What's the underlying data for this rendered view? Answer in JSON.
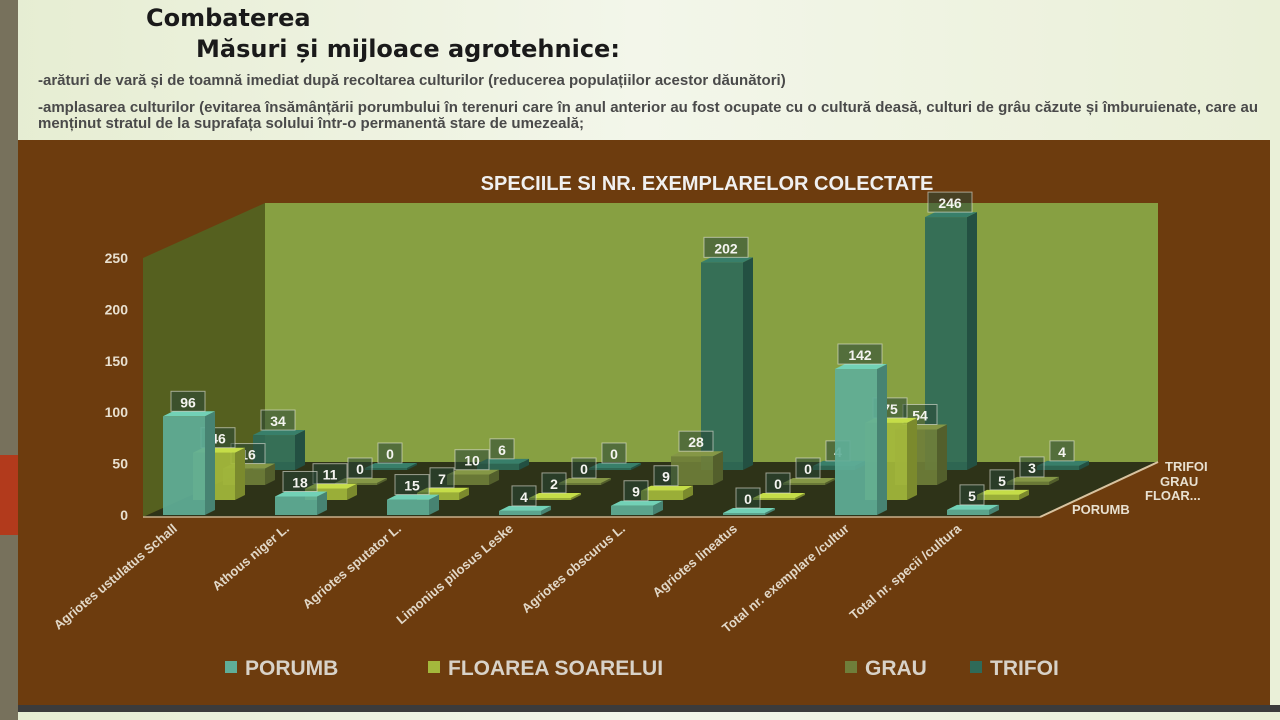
{
  "slide": {
    "title": "Combaterea",
    "subtitle": "Măsuri și mijloace agrotehnice:",
    "bullets": [
      "-arături de vară și de toamnă imediat după recoltarea culturilor (reducerea populațiilor acestor dăunători)",
      "-amplasarea culturilor (evitarea însămânțării porumbului în terenuri care în anul anterior au fost ocupate cu o cultură deasă, culturi de grâu căzute și îmburuienate, care au menținut stratul de la suprafața solului într-o permanentă stare de umezeală;"
    ]
  },
  "chart_data": {
    "type": "bar",
    "subtype": "3d-clustered-depth",
    "title": "SPECIILE SI NR. EXEMPLARELOR COLECTATE",
    "categories": [
      "Agriotes ustulatus Schall",
      "Athous niger L.",
      "Agriotes sputator L.",
      "Limonius pilosus Leske",
      "Agriotes obscurus L.",
      "Agriotes lineatus",
      "Total nr. exemplare /cultur",
      "Total  nr. specii /cultura"
    ],
    "series": [
      {
        "name": "PORUMB",
        "depth_label": "PORUMB",
        "color": "#5fae98",
        "values": [
          96,
          18,
          15,
          4,
          9,
          0,
          142,
          5
        ]
      },
      {
        "name": "FLOAREA SOARELUI",
        "depth_label": "FLOAR...",
        "color": "#a4b83c",
        "values": [
          46,
          11,
          7,
          2,
          9,
          0,
          75,
          5
        ]
      },
      {
        "name": "GRAU",
        "depth_label": "GRAU",
        "color": "#6f7e3a",
        "values": [
          16,
          0,
          10,
          0,
          28,
          0,
          54,
          3
        ]
      },
      {
        "name": "TRIFOI",
        "depth_label": "TRIFOI",
        "color": "#2f6a58",
        "values": [
          34,
          0,
          6,
          0,
          202,
          4,
          246,
          4
        ]
      }
    ],
    "yticks": [
      "0",
      "50",
      "100",
      "150",
      "200",
      "250"
    ],
    "ylim": [
      0,
      250
    ],
    "legend": "bottom",
    "grid": false
  }
}
